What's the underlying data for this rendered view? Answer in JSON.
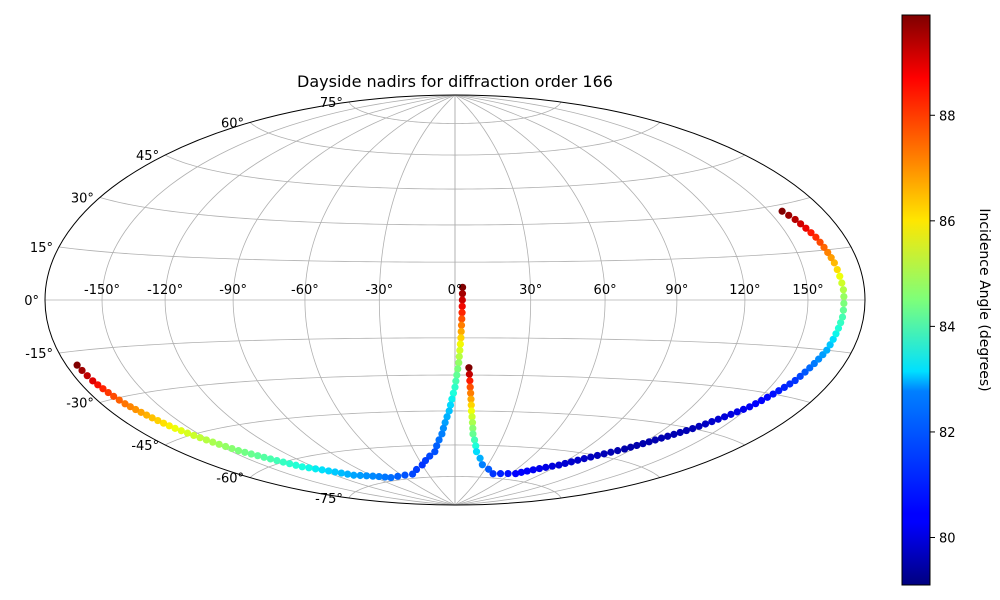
{
  "chart_data": {
    "type": "scatter",
    "projection": "hammer",
    "title": "Dayside nadirs for diffraction order 166",
    "grid": true,
    "lon_ticks": [
      -150,
      -120,
      -90,
      -60,
      -30,
      0,
      30,
      60,
      90,
      120,
      150
    ],
    "lat_ticks": [
      -75,
      -60,
      -45,
      -30,
      -15,
      0,
      15,
      30,
      45,
      60,
      75
    ],
    "tick_suffix": "°",
    "colorbar": {
      "label": "Incidence Angle (degrees)",
      "colormap": "jet",
      "range": [
        79.1,
        89.9
      ],
      "ticks": [
        80,
        82,
        84,
        86,
        88
      ]
    },
    "series": [
      {
        "points": [
          {
            "lon": 3,
            "lat": 5,
            "c": 89.9
          },
          {
            "lon": 2.8,
            "lat": -5,
            "c": 88.5
          },
          {
            "lon": 2.4,
            "lat": -15,
            "c": 86.5
          },
          {
            "lon": 1.6,
            "lat": -25,
            "c": 84.8
          },
          {
            "lon": 0,
            "lat": -35,
            "c": 83.5
          },
          {
            "lon": -3,
            "lat": -45,
            "c": 82.5
          },
          {
            "lon": -8,
            "lat": -55,
            "c": 81.8
          },
          {
            "lon": -15,
            "lat": -63,
            "c": 81.3
          },
          {
            "lon": -30,
            "lat": -69,
            "c": 81.0
          },
          {
            "lon": -47,
            "lat": -73,
            "c": 81.2
          },
          {
            "lon": -75,
            "lat": -73.5,
            "c": 81.6
          },
          {
            "lon": -105,
            "lat": -70,
            "c": 82.2
          },
          {
            "lon": -128,
            "lat": -63,
            "c": 83.2
          },
          {
            "lon": -145,
            "lat": -53,
            "c": 84.5
          },
          {
            "lon": -158,
            "lat": -42,
            "c": 86.0
          },
          {
            "lon": -167,
            "lat": -32,
            "c": 87.6
          },
          {
            "lon": -172,
            "lat": -24,
            "c": 89.0
          },
          {
            "lon": -174,
            "lat": -19,
            "c": 89.9
          }
        ]
      },
      {
        "points": [
          {
            "lon": 6,
            "lat": -27,
            "c": 89.9
          },
          {
            "lon": 7,
            "lat": -35,
            "c": 88.0
          },
          {
            "lon": 8.5,
            "lat": -45,
            "c": 86.0
          },
          {
            "lon": 11,
            "lat": -55,
            "c": 84.2
          },
          {
            "lon": 16,
            "lat": -63,
            "c": 82.8
          },
          {
            "lon": 25,
            "lat": -69,
            "c": 81.8
          },
          {
            "lon": 42,
            "lat": -73,
            "c": 81.0
          },
          {
            "lon": 65,
            "lat": -72,
            "c": 80.4
          },
          {
            "lon": 90,
            "lat": -66,
            "c": 79.9
          },
          {
            "lon": 115,
            "lat": -56,
            "c": 79.5
          },
          {
            "lon": 135,
            "lat": -45,
            "c": 79.6
          },
          {
            "lon": 150,
            "lat": -35,
            "c": 80.2
          },
          {
            "lon": 160,
            "lat": -25,
            "c": 81.0
          },
          {
            "lon": 166,
            "lat": -15,
            "c": 82.3
          },
          {
            "lon": 168.5,
            "lat": -5,
            "c": 83.8
          },
          {
            "lon": 168.5,
            "lat": 3,
            "c": 85.2
          },
          {
            "lon": 167,
            "lat": 11,
            "c": 86.8
          },
          {
            "lon": 164,
            "lat": 19,
            "c": 88.4
          },
          {
            "lon": 160,
            "lat": 25,
            "c": 89.4
          },
          {
            "lon": 157,
            "lat": 28,
            "c": 89.9
          }
        ]
      }
    ]
  }
}
